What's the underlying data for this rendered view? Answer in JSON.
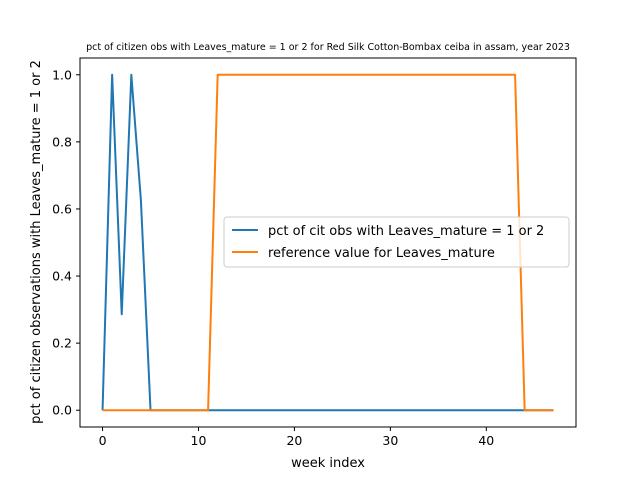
{
  "chart_data": {
    "type": "line",
    "title": "pct of citizen obs with Leaves_mature = 1 or 2 for Red Silk Cotton-Bombax ceiba in assam, year 2023",
    "xlabel": "week index",
    "ylabel": "pct of citizen observations with Leaves_mature = 1 or 2",
    "xlim": [
      -2.35,
      49.35
    ],
    "ylim": [
      -0.05,
      1.05
    ],
    "xticks": [
      0,
      10,
      20,
      30,
      40
    ],
    "yticks": [
      0.0,
      0.2,
      0.4,
      0.6,
      0.8,
      1.0
    ],
    "xtick_labels": [
      "0",
      "10",
      "20",
      "30",
      "40"
    ],
    "ytick_labels": [
      "0.0",
      "0.2",
      "0.4",
      "0.6",
      "0.8",
      "1.0"
    ],
    "grid": false,
    "legend_position": "center-right",
    "series": [
      {
        "name": "pct of cit obs with Leaves_mature = 1 or 2",
        "color": "#1f77b4",
        "x": [
          0,
          1,
          2,
          3,
          4,
          5,
          6,
          7,
          8,
          9,
          10,
          11,
          12,
          13,
          14,
          15,
          16,
          17,
          18,
          19,
          20,
          21,
          22,
          23,
          24,
          25,
          26,
          27,
          28,
          29,
          30,
          31,
          32,
          33,
          34,
          35,
          36,
          37,
          38,
          39,
          40,
          41,
          42,
          43,
          44,
          45,
          46,
          47
        ],
        "y": [
          0,
          1.0,
          0.286,
          1.0,
          0.625,
          0,
          0,
          0,
          0,
          0,
          0,
          0,
          0,
          0,
          0,
          0,
          0,
          0,
          0,
          0,
          0,
          0,
          0,
          0,
          0,
          0,
          0,
          0,
          0,
          0,
          0,
          0,
          0,
          0,
          0,
          0,
          0,
          0,
          0,
          0,
          0,
          0,
          0,
          0,
          0,
          0,
          0,
          0
        ]
      },
      {
        "name": "reference value for Leaves_mature",
        "color": "#ff7f0e",
        "x": [
          0,
          1,
          2,
          3,
          4,
          5,
          6,
          7,
          8,
          9,
          10,
          11,
          12,
          13,
          14,
          15,
          16,
          17,
          18,
          19,
          20,
          21,
          22,
          23,
          24,
          25,
          26,
          27,
          28,
          29,
          30,
          31,
          32,
          33,
          34,
          35,
          36,
          37,
          38,
          39,
          40,
          41,
          42,
          43,
          44,
          45,
          46,
          47
        ],
        "y": [
          0,
          0,
          0,
          0,
          0,
          0,
          0,
          0,
          0,
          0,
          0,
          0,
          1,
          1,
          1,
          1,
          1,
          1,
          1,
          1,
          1,
          1,
          1,
          1,
          1,
          1,
          1,
          1,
          1,
          1,
          1,
          1,
          1,
          1,
          1,
          1,
          1,
          1,
          1,
          1,
          1,
          1,
          1,
          1,
          0,
          0,
          0,
          0
        ]
      }
    ]
  }
}
